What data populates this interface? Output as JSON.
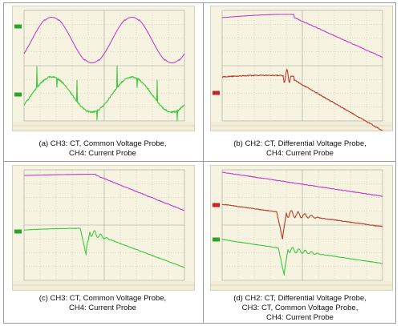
{
  "colors": {
    "magenta": "#c63fc6",
    "green": "#3ec93e",
    "red": "#b83a28",
    "grid": "#9ea39a",
    "scope_bg": "#f7f3e1"
  },
  "panels": [
    {
      "id": "a",
      "caption_lines": [
        "(a)  CH3: CT, Common Voltage Probe,",
        "CH4: Current Probe"
      ]
    },
    {
      "id": "b",
      "caption_lines": [
        "(b) CH2: CT, Differential Voltage Probe,",
        "CH4: Current Probe"
      ]
    },
    {
      "id": "c",
      "caption_lines": [
        "(c) CH3: CT, Common Voltage Probe,",
        "CH4: Current Probe"
      ]
    },
    {
      "id": "d",
      "caption_lines": [
        "(d) CH2: CT, Differential Voltage Probe,",
        "CH3: CT, Common Voltage Probe,",
        "CH4: Current Probe"
      ]
    }
  ]
}
